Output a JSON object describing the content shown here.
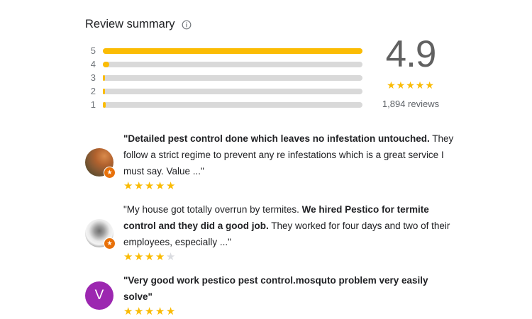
{
  "header": {
    "title": "Review summary",
    "info_icon": "info-icon"
  },
  "colors": {
    "bar_fill": "#fbbc04",
    "bar_track": "#d9d9d9",
    "star": "#fabb05",
    "star_empty": "#dadce0",
    "badge": "#e8710a",
    "letter_avatar_purple": "#9c27b0",
    "big_number_gray": "#616161",
    "text_dark": "#202124",
    "text_gray": "#5f6368"
  },
  "icons": {
    "star_glyph": "★",
    "local_guide_badge": "star-badge-icon"
  },
  "summary": {
    "average_rating": "4.9",
    "stars_filled": 5,
    "stars_total": 5,
    "review_count_label": "1,894 reviews",
    "bars": [
      {
        "label": "5",
        "fill_percent": 100
      },
      {
        "label": "4",
        "fill_percent": 2.5
      },
      {
        "label": "3",
        "fill_percent": 0.8
      },
      {
        "label": "2",
        "fill_percent": 0.8
      },
      {
        "label": "1",
        "fill_percent": 1.0
      }
    ]
  },
  "reviews": [
    {
      "avatar": {
        "type": "photo",
        "style": "warm",
        "badge": true
      },
      "segments": [
        {
          "text": "\"Detailed pest control done which leaves no infestation untouched.",
          "bold": true
        },
        {
          "text": " They follow a strict regime to prevent any re infestations which is a great service I must say. Value ...\"",
          "bold": false
        }
      ],
      "stars_filled": 5,
      "stars_total": 5
    },
    {
      "avatar": {
        "type": "photo",
        "style": "bw",
        "badge": true
      },
      "segments": [
        {
          "text": "\"My house got totally overrun by termites. ",
          "bold": false
        },
        {
          "text": "We hired Pestico for termite control and they did a good job.",
          "bold": true
        },
        {
          "text": " They worked for four days and two of their employees, especially ...\"",
          "bold": false
        }
      ],
      "stars_filled": 4,
      "stars_total": 5
    },
    {
      "avatar": {
        "type": "letter",
        "letter": "V",
        "color": "#9c27b0",
        "badge": false
      },
      "segments": [
        {
          "text": "\"Very good work pestico pest control.mosquto problem very easily solve\"",
          "bold": true
        }
      ],
      "stars_filled": 5,
      "stars_total": 5
    }
  ]
}
